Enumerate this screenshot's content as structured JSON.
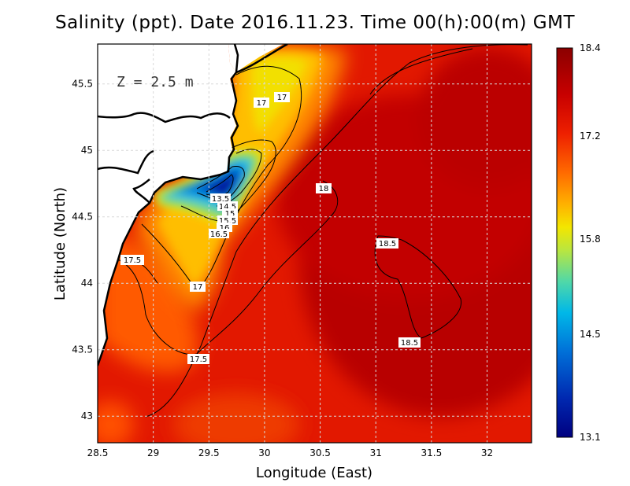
{
  "title": "Salinity (ppt). Date 2016.11.23. Time 00(h):00(m) GMT",
  "depth_label": "Z = 2.5 m",
  "xlabel": "Longitude (East)",
  "ylabel": "Latitude (North)",
  "x_ticks": [
    "28.5",
    "29",
    "29.5",
    "30",
    "30.5",
    "31",
    "31.5",
    "32"
  ],
  "y_ticks": [
    "43",
    "43.5",
    "44",
    "44.5",
    "45",
    "45.5"
  ],
  "colorbar": {
    "ticks": [
      "18.4",
      "17.2",
      "15.8",
      "14.5",
      "13.1"
    ],
    "range": [
      13.1,
      18.4
    ],
    "colors": [
      "#8b0000",
      "#c80000",
      "#ee2000",
      "#ff6a00",
      "#ffb000",
      "#f3e600",
      "#b9e640",
      "#50d8a8",
      "#00b8e8",
      "#0070d8",
      "#0028b0",
      "#000080"
    ]
  },
  "contour_labels": [
    "17",
    "17",
    "18",
    "18.5",
    "18.5",
    "17.5",
    "17",
    "17.5",
    "14.5",
    "15",
    "15.5",
    "16",
    "16.5",
    "13.5"
  ],
  "colors": {
    "land": "#ffffff",
    "coast": "#000000",
    "grid": "#d8d8d8"
  }
}
